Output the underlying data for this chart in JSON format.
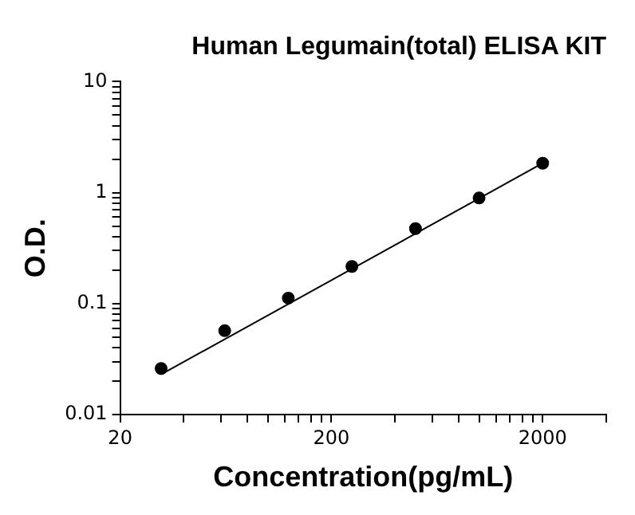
{
  "chart_data": {
    "type": "scatter",
    "title": "Human Legumain(total) ELISA KIT",
    "xlabel": "Concentration(pg/mL)",
    "ylabel": "O.D.",
    "log": "xy",
    "xlim": [
      20,
      4000
    ],
    "xticks": [
      20,
      {
        "value": 40,
        "label": null
      },
      {
        "value": 60,
        "label": null
      },
      {
        "value": 80,
        "label": null
      },
      {
        "value": 100,
        "label": null
      },
      {
        "value": 120,
        "label": null
      },
      {
        "value": 140,
        "label": null
      },
      {
        "value": 160,
        "label": null
      },
      {
        "value": 180,
        "label": null
      },
      200,
      {
        "value": 400,
        "label": null
      },
      {
        "value": 600,
        "label": null
      },
      {
        "value": 800,
        "label": null
      },
      {
        "value": 1000,
        "label": null
      },
      {
        "value": 1200,
        "label": null
      },
      {
        "value": 1400,
        "label": null
      },
      {
        "value": 1600,
        "label": null
      },
      {
        "value": 1800,
        "label": null
      },
      2000,
      {
        "value": 4000,
        "label": null
      }
    ],
    "ylim": [
      0.01,
      10
    ],
    "yticks": [
      0.01,
      {
        "value": 0.02,
        "label": null
      },
      {
        "value": 0.03,
        "label": null
      },
      {
        "value": 0.04,
        "label": null
      },
      {
        "value": 0.05,
        "label": null
      },
      {
        "value": 0.06,
        "label": null
      },
      {
        "value": 0.07,
        "label": null
      },
      {
        "value": 0.08,
        "label": null
      },
      {
        "value": 0.09,
        "label": null
      },
      0.1,
      {
        "value": 0.2,
        "label": null
      },
      {
        "value": 0.3,
        "label": null
      },
      {
        "value": 0.4,
        "label": null
      },
      {
        "value": 0.5,
        "label": null
      },
      {
        "value": 0.6,
        "label": null
      },
      {
        "value": 0.7,
        "label": null
      },
      {
        "value": 0.8,
        "label": null
      },
      {
        "value": 0.9,
        "label": null
      },
      1,
      {
        "value": 2,
        "label": null
      },
      {
        "value": 3,
        "label": null
      },
      {
        "value": 4,
        "label": null
      },
      {
        "value": 5,
        "label": null
      },
      {
        "value": 6,
        "label": null
      },
      {
        "value": 7,
        "label": null
      },
      {
        "value": 8,
        "label": null
      },
      {
        "value": 9,
        "label": null
      },
      10
    ],
    "series": [
      {
        "type": "scatter",
        "marker": "circle",
        "color": "#000000",
        "x": [
          31.25,
          62.5,
          125,
          250,
          500,
          1000,
          2000
        ],
        "values": [
          0.026,
          0.057,
          0.112,
          0.216,
          0.474,
          0.894,
          1.84
        ]
      },
      {
        "type": "line",
        "marker": "none",
        "line_style": "solid",
        "color": "#000000",
        "x": [
          31.25,
          2000
        ],
        "values": [
          0.023,
          1.84
        ]
      }
    ]
  }
}
